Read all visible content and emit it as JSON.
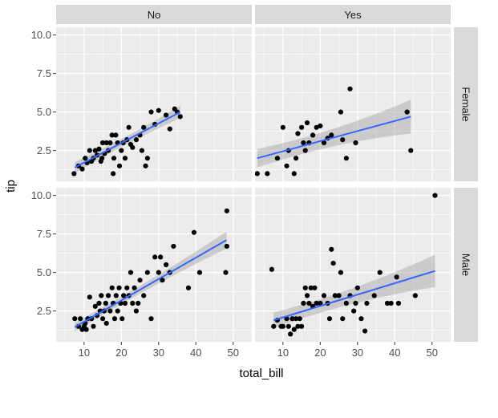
{
  "chart_data": {
    "type": "scatter",
    "facet_layout": "grid",
    "xlabel": "total_bill",
    "ylabel": "tip",
    "xlim": [
      2.5,
      55
    ],
    "ylim": [
      0.5,
      10.5
    ],
    "x_ticks": [
      10,
      20,
      30,
      40,
      50
    ],
    "y_ticks": [
      2.5,
      5.0,
      7.5,
      10.0
    ],
    "x_tick_labels": [
      "10",
      "20",
      "30",
      "40",
      "50"
    ],
    "y_tick_labels": [
      "2.5",
      "5.0",
      "7.5",
      "10.0"
    ],
    "col_strips": [
      "No",
      "Yes"
    ],
    "row_strips": [
      "Female",
      "Male"
    ],
    "grid": true,
    "point_color": "#000000",
    "line_color": "#3366FF",
    "band_color": "#999999",
    "panel_bg": "#EBEBEB",
    "strip_bg": "#D9D9D9",
    "panels": [
      {
        "col": "No",
        "row": "Female",
        "fit": {
          "x0": 7.5,
          "x1": 35.8,
          "y0": 1.4,
          "y1": 5.0
        },
        "band_halfwidth": {
          "start": 0.35,
          "mid": 0.15,
          "end": 0.4
        },
        "points": [
          [
            7.3,
            1.0
          ],
          [
            8.5,
            1.5
          ],
          [
            9.5,
            1.3
          ],
          [
            10.3,
            2.0
          ],
          [
            10.8,
            1.7
          ],
          [
            11.5,
            2.5
          ],
          [
            12.0,
            1.8
          ],
          [
            12.5,
            2.0
          ],
          [
            13.0,
            2.5
          ],
          [
            13.5,
            2.2
          ],
          [
            14.0,
            2.6
          ],
          [
            14.5,
            1.8
          ],
          [
            14.8,
            2.0
          ],
          [
            15.0,
            3.0
          ],
          [
            15.5,
            2.3
          ],
          [
            16.0,
            3.0
          ],
          [
            16.5,
            2.5
          ],
          [
            17.0,
            3.0
          ],
          [
            17.5,
            3.5
          ],
          [
            17.8,
            1.0
          ],
          [
            18.0,
            2.0
          ],
          [
            18.5,
            3.5
          ],
          [
            19.0,
            3.0
          ],
          [
            19.5,
            1.5
          ],
          [
            20.0,
            2.5
          ],
          [
            20.5,
            3.0
          ],
          [
            21.0,
            2.0
          ],
          [
            21.5,
            3.2
          ],
          [
            22.0,
            4.0
          ],
          [
            22.5,
            2.9
          ],
          [
            23.0,
            2.7
          ],
          [
            24.0,
            3.2
          ],
          [
            25.0,
            3.5
          ],
          [
            25.5,
            2.5
          ],
          [
            26.0,
            4.0
          ],
          [
            26.5,
            1.5
          ],
          [
            27.0,
            2.0
          ],
          [
            28.0,
            5.0
          ],
          [
            29.0,
            4.2
          ],
          [
            30.0,
            5.1
          ],
          [
            32.0,
            4.8
          ],
          [
            33.0,
            3.9
          ],
          [
            34.3,
            5.2
          ],
          [
            35.0,
            5.0
          ],
          [
            35.8,
            4.7
          ]
        ]
      },
      {
        "col": "Yes",
        "row": "Female",
        "fit": {
          "x0": 3.1,
          "x1": 44.3,
          "y0": 2.0,
          "y1": 4.7
        },
        "band_halfwidth": {
          "start": 0.6,
          "mid": 0.3,
          "end": 1.1
        },
        "points": [
          [
            3.1,
            1.0
          ],
          [
            5.8,
            1.0
          ],
          [
            8.5,
            2.0
          ],
          [
            10.0,
            4.0
          ],
          [
            11.0,
            1.5
          ],
          [
            11.5,
            2.5
          ],
          [
            13.0,
            1.0
          ],
          [
            13.5,
            2.0
          ],
          [
            14.0,
            3.6
          ],
          [
            15.0,
            4.0
          ],
          [
            15.5,
            3.0
          ],
          [
            16.0,
            2.5
          ],
          [
            16.5,
            4.3
          ],
          [
            17.0,
            3.0
          ],
          [
            18.0,
            3.5
          ],
          [
            19.0,
            4.0
          ],
          [
            20.0,
            4.1
          ],
          [
            21.0,
            3.0
          ],
          [
            22.0,
            3.3
          ],
          [
            23.0,
            3.5
          ],
          [
            25.5,
            5.0
          ],
          [
            26.0,
            3.2
          ],
          [
            27.0,
            2.0
          ],
          [
            28.0,
            6.5
          ],
          [
            29.5,
            3.0
          ],
          [
            43.3,
            5.0
          ],
          [
            44.3,
            2.5
          ]
        ]
      },
      {
        "col": "No",
        "row": "Male",
        "fit": {
          "x0": 7.5,
          "x1": 48.2,
          "y0": 1.45,
          "y1": 7.1
        },
        "band_halfwidth": {
          "start": 0.28,
          "mid": 0.12,
          "end": 0.55
        },
        "points": [
          [
            7.5,
            2.0
          ],
          [
            8.5,
            1.5
          ],
          [
            9.0,
            2.0
          ],
          [
            9.5,
            1.3
          ],
          [
            10.0,
            1.5
          ],
          [
            10.3,
            1.7
          ],
          [
            10.6,
            1.3
          ],
          [
            11.0,
            2.0
          ],
          [
            11.5,
            3.4
          ],
          [
            12.0,
            2.0
          ],
          [
            12.5,
            1.5
          ],
          [
            13.0,
            2.8
          ],
          [
            13.5,
            2.2
          ],
          [
            14.0,
            3.0
          ],
          [
            14.3,
            2.5
          ],
          [
            14.6,
            3.5
          ],
          [
            15.0,
            2.0
          ],
          [
            15.4,
            2.5
          ],
          [
            15.8,
            3.0
          ],
          [
            16.0,
            1.7
          ],
          [
            16.5,
            3.5
          ],
          [
            17.0,
            2.5
          ],
          [
            17.5,
            4.0
          ],
          [
            17.8,
            3.0
          ],
          [
            18.2,
            2.0
          ],
          [
            18.6,
            3.5
          ],
          [
            19.0,
            2.5
          ],
          [
            19.4,
            4.0
          ],
          [
            19.8,
            3.0
          ],
          [
            20.2,
            2.0
          ],
          [
            20.6,
            3.5
          ],
          [
            21.0,
            3.0
          ],
          [
            21.5,
            4.0
          ],
          [
            22.0,
            3.5
          ],
          [
            22.5,
            5.0
          ],
          [
            23.0,
            3.0
          ],
          [
            23.5,
            4.0
          ],
          [
            24.0,
            2.5
          ],
          [
            24.5,
            3.0
          ],
          [
            25.0,
            4.5
          ],
          [
            26.0,
            3.5
          ],
          [
            27.0,
            5.0
          ],
          [
            28.0,
            2.0
          ],
          [
            29.0,
            6.0
          ],
          [
            30.0,
            5.0
          ],
          [
            30.5,
            6.0
          ],
          [
            31.0,
            4.5
          ],
          [
            32.0,
            5.5
          ],
          [
            33.0,
            5.0
          ],
          [
            34.0,
            6.7
          ],
          [
            38.0,
            4.0
          ],
          [
            39.5,
            7.6
          ],
          [
            41.0,
            5.0
          ],
          [
            48.0,
            5.0
          ],
          [
            48.3,
            9.0
          ],
          [
            48.3,
            6.7
          ]
        ]
      },
      {
        "col": "Yes",
        "row": "Male",
        "fit": {
          "x0": 7.5,
          "x1": 50.8,
          "y0": 1.9,
          "y1": 5.1
        },
        "band_halfwidth": {
          "start": 0.5,
          "mid": 0.25,
          "end": 1.05
        },
        "points": [
          [
            7.0,
            5.2
          ],
          [
            7.5,
            1.5
          ],
          [
            8.5,
            1.9
          ],
          [
            9.5,
            1.5
          ],
          [
            10.0,
            1.5
          ],
          [
            11.0,
            2.0
          ],
          [
            11.5,
            1.5
          ],
          [
            12.0,
            1.0
          ],
          [
            12.5,
            2.0
          ],
          [
            13.0,
            1.3
          ],
          [
            13.5,
            2.0
          ],
          [
            14.0,
            1.5
          ],
          [
            14.5,
            2.0
          ],
          [
            15.0,
            1.5
          ],
          [
            15.5,
            3.0
          ],
          [
            16.0,
            4.0
          ],
          [
            16.5,
            3.5
          ],
          [
            17.0,
            3.0
          ],
          [
            17.5,
            4.0
          ],
          [
            18.0,
            2.8
          ],
          [
            18.5,
            4.0
          ],
          [
            19.0,
            3.0
          ],
          [
            20.0,
            3.0
          ],
          [
            21.0,
            3.5
          ],
          [
            22.0,
            3.0
          ],
          [
            22.5,
            2.0
          ],
          [
            23.0,
            6.5
          ],
          [
            23.5,
            5.6
          ],
          [
            24.0,
            3.5
          ],
          [
            25.0,
            3.5
          ],
          [
            25.5,
            5.0
          ],
          [
            26.0,
            2.0
          ],
          [
            27.0,
            3.0
          ],
          [
            28.0,
            3.5
          ],
          [
            29.0,
            2.5
          ],
          [
            29.5,
            3.0
          ],
          [
            30.0,
            4.0
          ],
          [
            31.0,
            2.0
          ],
          [
            32.0,
            1.2
          ],
          [
            32.5,
            3.0
          ],
          [
            34.5,
            3.5
          ],
          [
            36.0,
            5.0
          ],
          [
            38.0,
            3.0
          ],
          [
            39.0,
            3.0
          ],
          [
            40.5,
            4.7
          ],
          [
            41.0,
            3.0
          ],
          [
            45.5,
            3.5
          ],
          [
            50.8,
            10.0
          ]
        ]
      }
    ]
  }
}
